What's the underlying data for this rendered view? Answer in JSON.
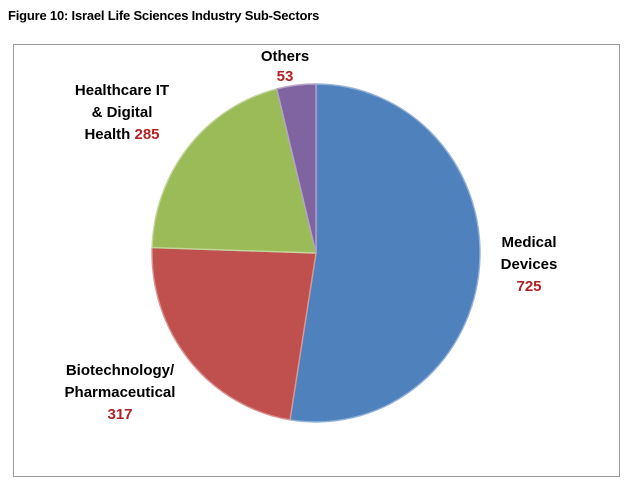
{
  "figure": {
    "title": "Figure 10: Israel Life Sciences Industry Sub-Sectors"
  },
  "chart_data": {
    "type": "pie",
    "title": "Figure 10: Israel Life Sciences Industry Sub-Sectors",
    "total": 1380,
    "direction": "clockwise",
    "start_angle_deg": 0,
    "legend": "none",
    "value_label_color": "#B22222",
    "category_label_color": "#000000",
    "frame_border_color": "#9a9a9a",
    "slices": [
      {
        "id": "medical",
        "label": "Medical Devices",
        "value": 725,
        "color": "#4F81BD",
        "border_color": "#95B3D7"
      },
      {
        "id": "biotech",
        "label": "Biotechnology/Pharmaceutical",
        "value": 317,
        "color": "#C0504D",
        "border_color": "#D99694"
      },
      {
        "id": "healthcare",
        "label": "Healthcare IT & Digital Health",
        "value": 285,
        "color": "#9BBB59",
        "border_color": "#C3D69B"
      },
      {
        "id": "others",
        "label": "Others",
        "value": 53,
        "color": "#8064A2",
        "border_color": "#B3A2C7"
      }
    ],
    "callouts": [
      {
        "id": "others",
        "lines": [
          "Others"
        ],
        "value": "53",
        "value_position": "own-line"
      },
      {
        "id": "healthcare",
        "lines": [
          "Healthcare IT",
          "& Digital",
          "Health"
        ],
        "value": "285",
        "value_position": "inline-last"
      },
      {
        "id": "medical",
        "lines": [
          "Medical",
          "Devices"
        ],
        "value": "725",
        "value_position": "own-line"
      },
      {
        "id": "biotech",
        "lines": [
          "Biotechnology/",
          "Pharmaceutical"
        ],
        "value": "317",
        "value_position": "own-line"
      }
    ]
  }
}
